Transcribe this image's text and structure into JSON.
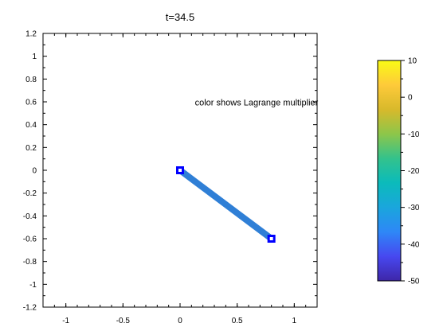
{
  "chart_data": [
    {
      "type": "line",
      "title": "t=34.5",
      "xlim": [
        -1.2,
        1.2
      ],
      "ylim": [
        -1.2,
        1.2
      ],
      "x_ticks": [
        -1,
        -0.5,
        0,
        0.5,
        1
      ],
      "x_tick_labels": [
        "-1",
        "-0.5",
        "0",
        "0.5",
        "1"
      ],
      "y_ticks": [
        1.2,
        1,
        0.8,
        0.6,
        0.4,
        0.2,
        0,
        -0.2,
        -0.4,
        -0.6,
        -0.8,
        -1,
        -1.2
      ],
      "y_tick_labels": [
        "1.2",
        "1",
        "0.8",
        "0.6",
        "0.4",
        "0.2",
        "0",
        "-0.2",
        "-0.4",
        "-0.6",
        "-0.8",
        "-1",
        "-1.2"
      ],
      "grid": false,
      "annotation": {
        "text": "color shows Lagrange multiplier",
        "x": 0.13,
        "y": 0.57
      },
      "series": [
        {
          "x": [
            0,
            0.8
          ],
          "y": [
            0,
            -0.6
          ],
          "color": "#2f7fd6",
          "markers": "square",
          "marker_color": "#0000ff"
        }
      ]
    },
    {
      "type": "colorbar",
      "range": [
        -50,
        10
      ],
      "ticks": [
        10,
        0,
        -10,
        -20,
        -30,
        -40,
        -50
      ],
      "tick_labels": [
        "10",
        "0",
        "-10",
        "-20",
        "-30",
        "-40",
        "-50"
      ],
      "colormap": "parula",
      "colormap_stops": [
        "#3e26a8",
        "#4748f0",
        "#2e87f7",
        "#1aa6dc",
        "#0bbbbb",
        "#33c28c",
        "#8dc64a",
        "#d8b92b",
        "#feca3a",
        "#f9fb15"
      ]
    }
  ]
}
